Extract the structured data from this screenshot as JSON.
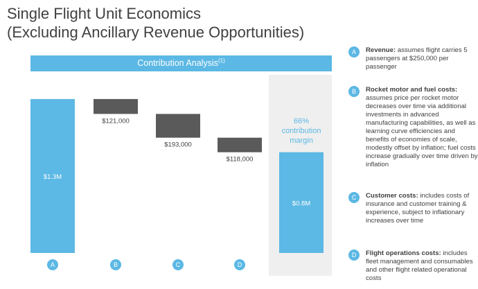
{
  "title_line1": "Single Flight Unit Economics",
  "title_line2": "(Excluding Ancillary Revenue Opportunities)",
  "banner": {
    "label": "Contribution Analysis",
    "superscript": "(1)"
  },
  "colors": {
    "accent": "#5cb8e4",
    "bar_positive": "#5cb8e4",
    "bar_negative": "#5a5a5a",
    "margin_text": "#5cb8e4",
    "shade": "#efefef"
  },
  "margin_annotation": [
    "66%",
    "contribution",
    "margin"
  ],
  "chart_data": {
    "type": "bar",
    "subtype": "waterfall",
    "categories": [
      "A",
      "B",
      "C",
      "D",
      ""
    ],
    "values": [
      1250000,
      -121000,
      -193000,
      -118000,
      818000
    ],
    "data_labels": [
      "$1.3M",
      "$121,000",
      "$193,000",
      "$118,000",
      "$0.8M"
    ],
    "ylim": [
      0,
      1300000
    ],
    "grid": false
  },
  "legend": [
    {
      "badge": "A",
      "bold": "Revenue:",
      "text": " assumes flight carries 5 passengers at $250,000 per passenger"
    },
    {
      "badge": "B",
      "bold": "Rocket motor and fuel costs:",
      "text": " assumes price per rocket motor decreases over time via additional investments in advanced manufacturing capabilities, as well as learning curve efficiencies and benefits of economies of scale, modestly offset by inflation; fuel costs increase gradually over time driven by inflation"
    },
    {
      "badge": "C",
      "bold": "Customer costs:",
      "text": " includes costs of insurance and customer training & experience, subject to inflationary increases over time"
    },
    {
      "badge": "D",
      "bold": "Flight operations costs:",
      "text": " includes fleet management and consumables and other flight related operational costs"
    }
  ]
}
